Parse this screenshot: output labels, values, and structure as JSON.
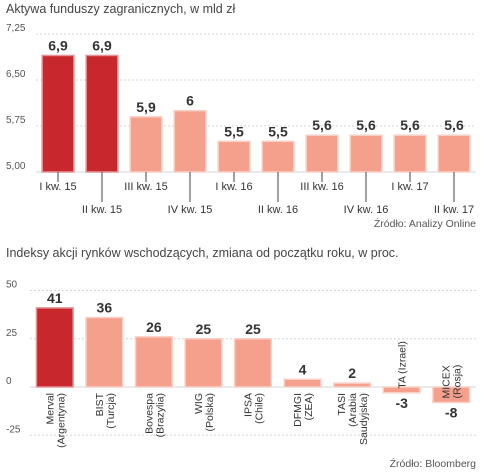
{
  "chart_data": [
    {
      "type": "bar",
      "title": "Aktywa funduszy zagranicznych, w mld zł",
      "source": "Źródło: Analizy Online",
      "categories": [
        "I kw. 15",
        "II kw. 15",
        "III kw. 15",
        "IV kw. 15",
        "I kw. 16",
        "II kw. 16",
        "III kw. 16",
        "IV kw. 16",
        "I kw. 17",
        "II kw. 17"
      ],
      "values": [
        6.9,
        6.9,
        5.9,
        6.0,
        5.5,
        5.5,
        5.6,
        5.6,
        5.6,
        5.6
      ],
      "value_labels": [
        "6,9",
        "6,9",
        "5,9",
        "6",
        "5,5",
        "5,5",
        "5,6",
        "5,6",
        "5,6",
        "5,6"
      ],
      "yticks": [
        "7,25",
        "6,50",
        "5,75",
        "5,00"
      ],
      "ylim": [
        5.0,
        7.25
      ],
      "highlight_color": "#c8282d",
      "bar_color": "#f4a08c"
    },
    {
      "type": "bar",
      "title": "Indeksy akcji rynków wschodzących, zmiana od początku roku, w proc.",
      "source": "Źródło: Bloomberg",
      "categories": [
        [
          "Merval",
          "(Argentyna)"
        ],
        [
          "BIST",
          "(Turcja)"
        ],
        [
          "Bovespa",
          "(Brazylia)"
        ],
        [
          "WIG",
          "(Polska)"
        ],
        [
          "IPSA",
          "(Chile)"
        ],
        [
          "DFMGI",
          "(ZEA)"
        ],
        [
          "TASI",
          "(Arabia",
          "Saudyjska)"
        ],
        [
          "TA (Izrael)"
        ],
        [
          "MICEX",
          "(Rosja)"
        ]
      ],
      "values": [
        41,
        36,
        26,
        25,
        25,
        4,
        2,
        -3,
        -8
      ],
      "value_labels": [
        "41",
        "36",
        "26",
        "25",
        "25",
        "4",
        "2",
        "-3",
        "-8"
      ],
      "yticks": [
        "50",
        "25",
        "0",
        "-25"
      ],
      "ylim": [
        -25,
        50
      ],
      "highlight_color": "#c8282d",
      "bar_color": "#f4a08c"
    }
  ]
}
